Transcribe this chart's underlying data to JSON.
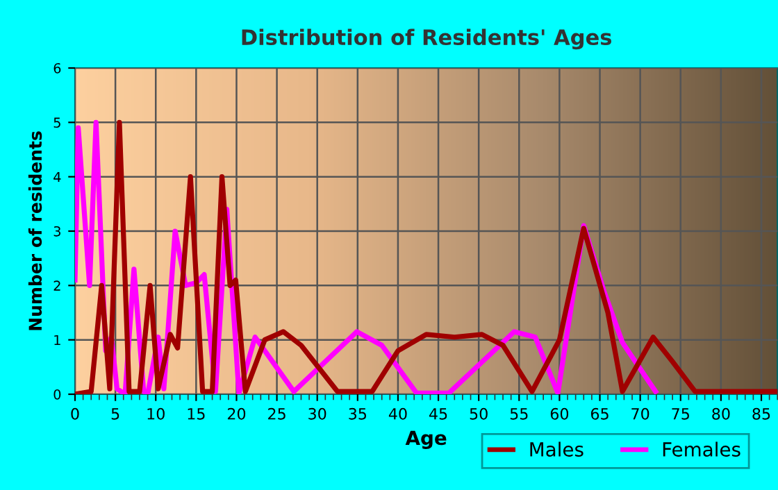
{
  "chart_data": {
    "type": "line",
    "title": "Distribution of Residents' Ages",
    "xlabel": "Age",
    "ylabel": "Number of residents",
    "xlim": [
      0,
      87
    ],
    "xticks": [
      0,
      5,
      10,
      15,
      20,
      25,
      30,
      35,
      40,
      45,
      50,
      55,
      60,
      65,
      70,
      75,
      80,
      85
    ],
    "ylim": [
      0,
      6
    ],
    "yticks": [
      0,
      1,
      2,
      3,
      4,
      5,
      6
    ],
    "grid": true,
    "legend": "bottom right",
    "marker": "none",
    "line_style": "solid",
    "series": [
      {
        "name": "Males",
        "color": "#a00000",
        "x": [
          0,
          2,
          3.3,
          4.3,
          5.5,
          6.7,
          8,
          9.3,
          10.3,
          11.8,
          12.7,
          14.3,
          15.8,
          17,
          18.2,
          19.2,
          19.9,
          21.1,
          23.5,
          25.8,
          28,
          32.5,
          36.8,
          40,
          43.5,
          47,
          50.4,
          53,
          56.6,
          60,
          63,
          66,
          67.8,
          71.6,
          74,
          76.8,
          80,
          87
        ],
        "values": [
          0,
          0.05,
          2,
          0.1,
          5,
          0.05,
          0.05,
          2,
          0.1,
          1.1,
          0.85,
          4,
          0.05,
          0.05,
          4,
          2,
          2.1,
          0.05,
          1,
          1.15,
          0.9,
          0.05,
          0.05,
          0.8,
          1.1,
          1.05,
          1.1,
          0.9,
          0.05,
          1,
          3.05,
          1.5,
          0.05,
          1.05,
          0.6,
          0.05,
          0.05,
          0.05
        ]
      },
      {
        "name": "Females",
        "color": "#ff00ff",
        "x": [
          0,
          0.4,
          1.8,
          2.6,
          3.8,
          4.5,
          5.2,
          6.2,
          7.3,
          8.5,
          9,
          10.3,
          11,
          12.4,
          13.7,
          15,
          16,
          17.4,
          18.8,
          20.3,
          22.3,
          27.1,
          34.9,
          38,
          42.3,
          46.3,
          54.4,
          57,
          59.8,
          63,
          65.5,
          67.8,
          71.9
        ],
        "values": [
          2.1,
          4.9,
          2,
          5,
          0.8,
          1.05,
          0.1,
          0,
          2.3,
          0.05,
          0,
          1.05,
          0.1,
          3,
          2,
          2.05,
          2.2,
          0.05,
          3.4,
          0.02,
          1.05,
          0.05,
          1.15,
          0.9,
          0.02,
          0.02,
          1.15,
          1.05,
          0.02,
          3.1,
          1.9,
          0.95,
          0.05
        ]
      }
    ]
  }
}
